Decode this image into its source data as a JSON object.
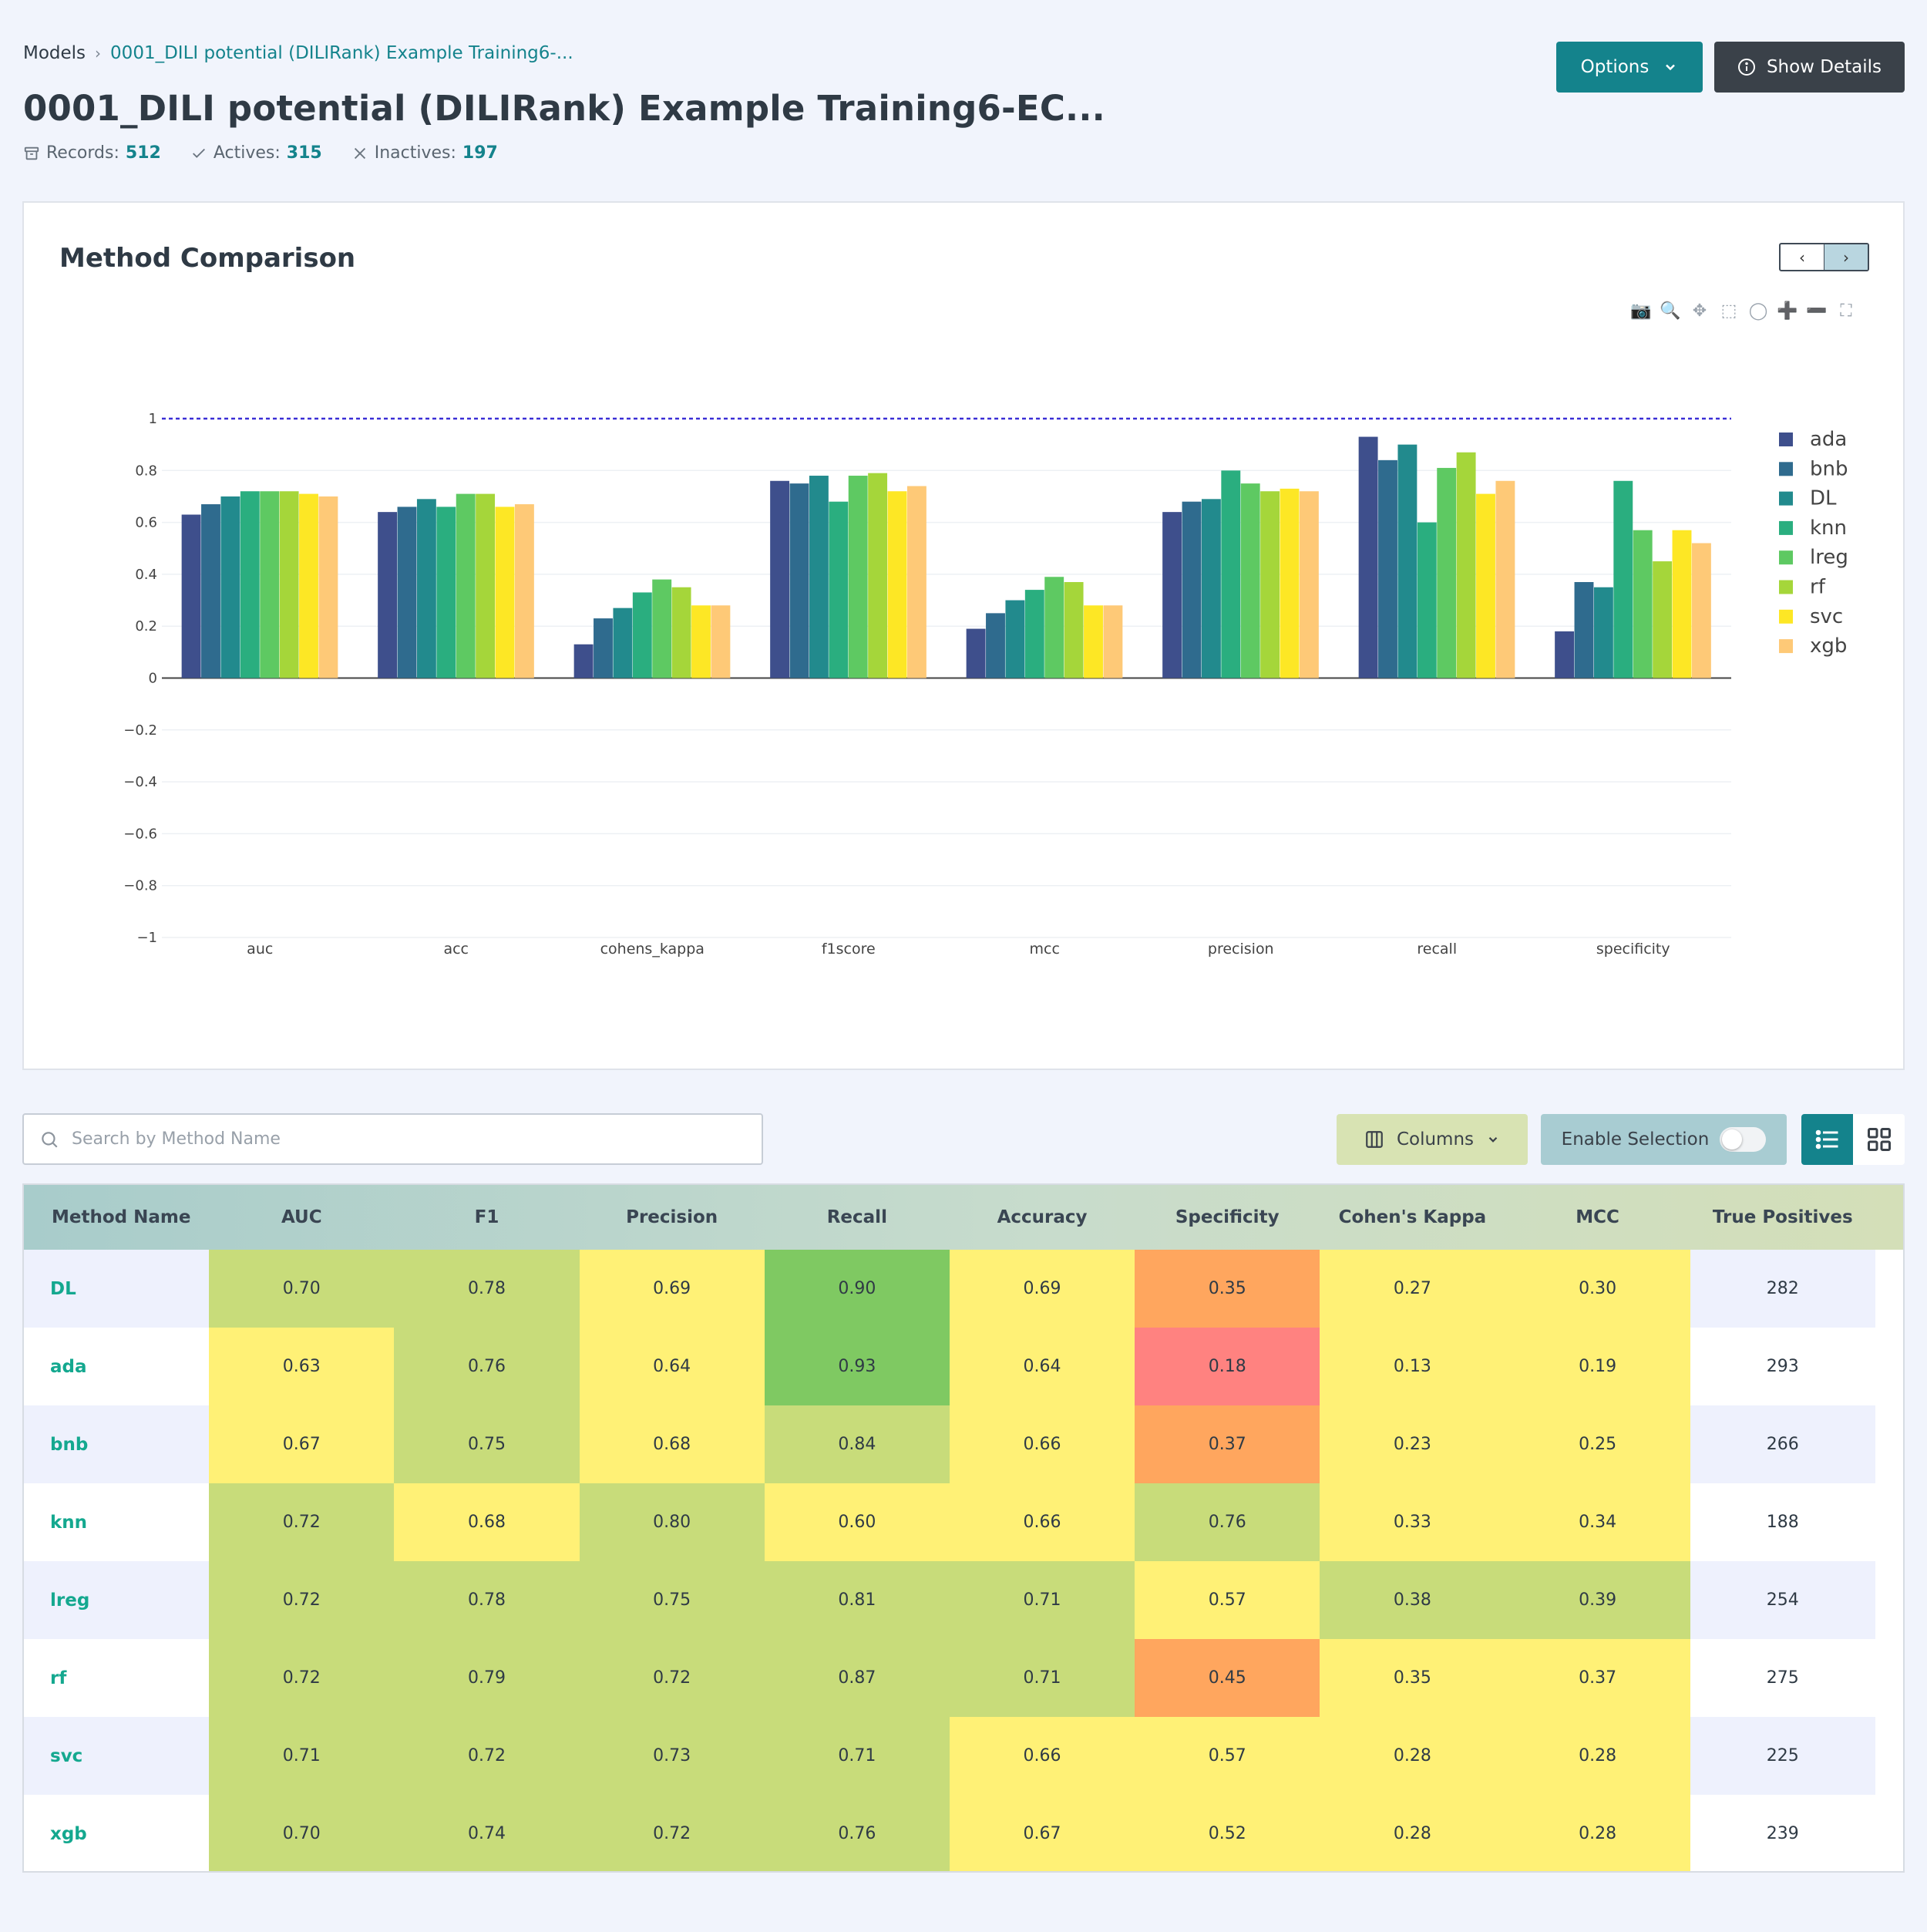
{
  "breadcrumb": {
    "root": "Models",
    "current": "0001_DILI potential (DILIRank) Example Training6-..."
  },
  "page_title": "0001_DILI potential (DILIRank) Example Training6-EC...",
  "stats": {
    "records_label": "Records:",
    "records": "512",
    "actives_label": "Actives:",
    "actives": "315",
    "inactives_label": "Inactives:",
    "inactives": "197"
  },
  "header_buttons": {
    "options": "Options",
    "details": "Show Details"
  },
  "chart_card": {
    "title": "Method Comparison",
    "pager_prev": "‹",
    "pager_next": "›"
  },
  "modebar_icons": [
    "camera-icon",
    "zoom-icon",
    "pan-icon",
    "box-select-icon",
    "lasso-icon",
    "zoom-in-icon",
    "zoom-out-icon",
    "autoscale-icon"
  ],
  "chart_data": {
    "type": "bar",
    "categories": [
      "auc",
      "acc",
      "cohens_kappa",
      "f1score",
      "mcc",
      "precision",
      "recall",
      "specificity"
    ],
    "series": [
      {
        "name": "ada",
        "color": "#3e4f8c",
        "values": [
          0.63,
          0.64,
          0.13,
          0.76,
          0.19,
          0.64,
          0.93,
          0.18
        ]
      },
      {
        "name": "bnb",
        "color": "#2f6b8e",
        "values": [
          0.67,
          0.66,
          0.23,
          0.75,
          0.25,
          0.68,
          0.84,
          0.37
        ]
      },
      {
        "name": "DL",
        "color": "#228a8d",
        "values": [
          0.7,
          0.69,
          0.27,
          0.78,
          0.3,
          0.69,
          0.9,
          0.35
        ]
      },
      {
        "name": "knn",
        "color": "#2aae7f",
        "values": [
          0.72,
          0.66,
          0.33,
          0.68,
          0.34,
          0.8,
          0.6,
          0.76
        ]
      },
      {
        "name": "lreg",
        "color": "#5ec962",
        "values": [
          0.72,
          0.71,
          0.38,
          0.78,
          0.39,
          0.75,
          0.81,
          0.57
        ]
      },
      {
        "name": "rf",
        "color": "#a5d63a",
        "values": [
          0.72,
          0.71,
          0.35,
          0.79,
          0.37,
          0.72,
          0.87,
          0.45
        ]
      },
      {
        "name": "svc",
        "color": "#fde725",
        "values": [
          0.71,
          0.66,
          0.28,
          0.72,
          0.28,
          0.73,
          0.71,
          0.57
        ]
      },
      {
        "name": "xgb",
        "color": "#fec977",
        "values": [
          0.7,
          0.67,
          0.28,
          0.74,
          0.28,
          0.72,
          0.76,
          0.52
        ]
      }
    ],
    "ylim": [
      -1,
      1
    ],
    "yticks": [
      "1",
      "0.8",
      "0.6",
      "0.4",
      "0.2",
      "0",
      "−0.2",
      "−0.4",
      "−0.6",
      "−0.8",
      "−1"
    ],
    "reference_line": 1,
    "grid": true,
    "legend_position": "right"
  },
  "search": {
    "placeholder": "Search by Method Name",
    "value": ""
  },
  "toolbar": {
    "columns": "Columns",
    "selection": "Enable Selection"
  },
  "table": {
    "headers": [
      "Method Name",
      "AUC",
      "F1",
      "Precision",
      "Recall",
      "Accuracy",
      "Specificity",
      "Cohen's Kappa",
      "MCC",
      "True Positives"
    ],
    "rows": [
      [
        "DL",
        "0.70",
        "0.78",
        "0.69",
        "0.90",
        "0.69",
        "0.35",
        "0.27",
        "0.30",
        "282"
      ],
      [
        "ada",
        "0.63",
        "0.76",
        "0.64",
        "0.93",
        "0.64",
        "0.18",
        "0.13",
        "0.19",
        "293"
      ],
      [
        "bnb",
        "0.67",
        "0.75",
        "0.68",
        "0.84",
        "0.66",
        "0.37",
        "0.23",
        "0.25",
        "266"
      ],
      [
        "knn",
        "0.72",
        "0.68",
        "0.80",
        "0.60",
        "0.66",
        "0.76",
        "0.33",
        "0.34",
        "188"
      ],
      [
        "lreg",
        "0.72",
        "0.78",
        "0.75",
        "0.81",
        "0.71",
        "0.57",
        "0.38",
        "0.39",
        "254"
      ],
      [
        "rf",
        "0.72",
        "0.79",
        "0.72",
        "0.87",
        "0.71",
        "0.45",
        "0.35",
        "0.37",
        "275"
      ],
      [
        "svc",
        "0.71",
        "0.72",
        "0.73",
        "0.71",
        "0.66",
        "0.57",
        "0.28",
        "0.28",
        "225"
      ],
      [
        "xgb",
        "0.70",
        "0.74",
        "0.72",
        "0.76",
        "0.67",
        "0.52",
        "0.28",
        "0.28",
        "239"
      ]
    ],
    "cell_colors": {
      "green_strong": "#7fc962",
      "green": "#c8dc7a",
      "yellow": "#fff176",
      "orange": "#ffa65e",
      "red": "#ff8280"
    },
    "cell_color_grid": [
      [
        "green",
        "green",
        "yellow",
        "green_strong",
        "yellow",
        "orange",
        "yellow",
        "yellow"
      ],
      [
        "yellow",
        "green",
        "yellow",
        "green_strong",
        "yellow",
        "red",
        "yellow",
        "yellow"
      ],
      [
        "yellow",
        "green",
        "yellow",
        "green",
        "yellow",
        "orange",
        "yellow",
        "yellow"
      ],
      [
        "green",
        "yellow",
        "green",
        "yellow",
        "yellow",
        "green",
        "yellow",
        "yellow"
      ],
      [
        "green",
        "green",
        "green",
        "green",
        "green",
        "yellow",
        "green",
        "green"
      ],
      [
        "green",
        "green",
        "green",
        "green",
        "green",
        "orange",
        "yellow",
        "yellow"
      ],
      [
        "green",
        "green",
        "green",
        "green",
        "yellow",
        "yellow",
        "yellow",
        "yellow"
      ],
      [
        "green",
        "green",
        "green",
        "green",
        "yellow",
        "yellow",
        "yellow",
        "yellow"
      ]
    ]
  }
}
